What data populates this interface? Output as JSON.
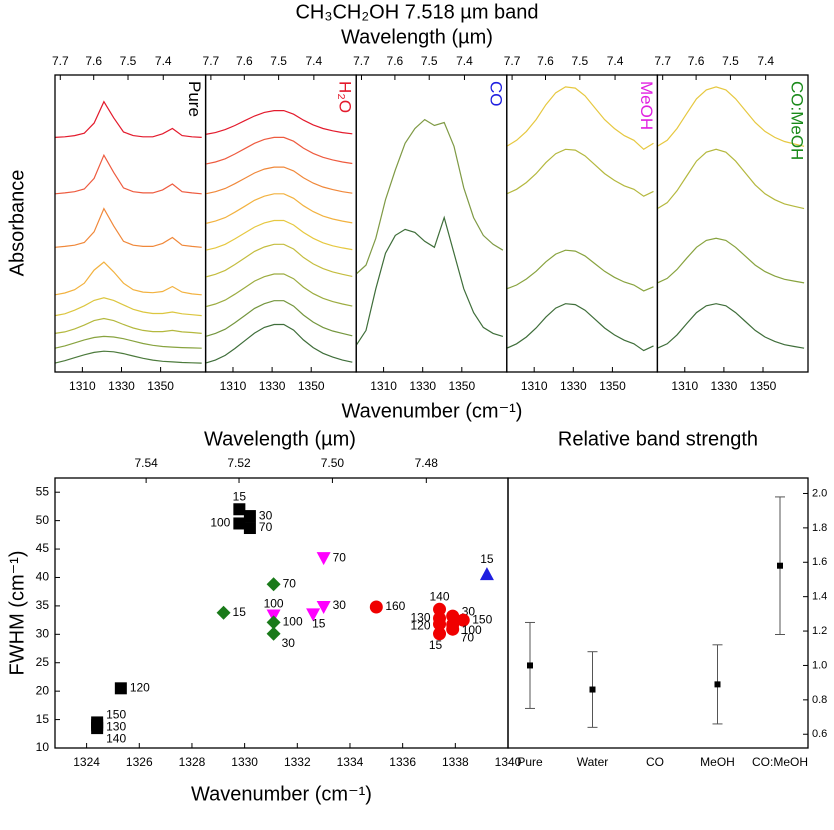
{
  "title": "CH₃CH₂OH  7.518 µm band",
  "spectra": {
    "x2label": "Wavelength (µm)",
    "xlabel": "Wavenumber (cm⁻¹)",
    "ylabel": "Absorbance"
  },
  "chart_data": [
    {
      "type": "line",
      "label": "Pure",
      "label_color": "#000000",
      "x": [
        1296,
        1301,
        1306,
        1311,
        1316,
        1321,
        1326,
        1331,
        1336,
        1341,
        1346,
        1351,
        1356,
        1361,
        1366,
        1371
      ],
      "xlim": [
        1296,
        1373
      ],
      "xticks": [
        1310,
        1330,
        1350
      ],
      "x2ticks": [
        7.7,
        7.6,
        7.5,
        7.4
      ],
      "ylim": [
        0,
        100
      ],
      "series": [
        {
          "color": "#e31a2c",
          "values": [
            79,
            79.2,
            79.6,
            80.4,
            83.8,
            91,
            85.6,
            80.8,
            79.6,
            79.2,
            79.2,
            80.2,
            82,
            79.6,
            79.2,
            79
          ]
        },
        {
          "color": "#ee5b3f",
          "values": [
            60,
            60.3,
            60.7,
            61.6,
            65.2,
            73,
            67.2,
            62,
            60.7,
            60.3,
            60.3,
            61.3,
            63.3,
            60.7,
            60.3,
            60
          ]
        },
        {
          "color": "#f0883a",
          "values": [
            42,
            42.3,
            42.7,
            43.6,
            47.2,
            55,
            49.2,
            44,
            42.7,
            42.3,
            42.3,
            43.3,
            45.3,
            42.7,
            42.3,
            42
          ]
        },
        {
          "color": "#f2b240",
          "values": [
            26,
            26.6,
            27.7,
            29.9,
            34.3,
            37,
            33.7,
            29.9,
            27.7,
            26.9,
            26.7,
            27.1,
            28.8,
            26.9,
            26.3,
            26
          ]
        },
        {
          "color": "#dcc63f",
          "values": [
            19,
            19.6,
            20.8,
            22.3,
            24.1,
            25,
            24.1,
            22.6,
            21.1,
            20.2,
            19.7,
            19.7,
            20.2,
            19.6,
            19.3,
            19
          ]
        },
        {
          "color": "#b4b83e",
          "values": [
            13,
            13.5,
            14.5,
            15.8,
            17.3,
            18,
            17.3,
            16,
            14.8,
            14,
            13.6,
            13.6,
            14,
            13.5,
            13.3,
            13
          ]
        },
        {
          "color": "#88a33f",
          "values": [
            8,
            8.8,
            9.8,
            10.8,
            11.6,
            12,
            11.8,
            11.2,
            10.4,
            9.6,
            9,
            8.6,
            8.4,
            8.2,
            8.1,
            8
          ]
        },
        {
          "color": "#4c7a3c",
          "values": [
            3,
            3.8,
            4.8,
            5.8,
            6.6,
            7,
            6.8,
            6.2,
            5.4,
            4.6,
            4,
            3.6,
            3.4,
            3.2,
            3.1,
            3
          ]
        }
      ]
    },
    {
      "type": "line",
      "label": "H₂O",
      "label_color": "#e31a2c",
      "x": [
        1296,
        1301,
        1306,
        1311,
        1316,
        1321,
        1326,
        1331,
        1336,
        1341,
        1346,
        1351,
        1356,
        1361,
        1366,
        1371
      ],
      "xlim": [
        1296,
        1373
      ],
      "xticks": [
        1310,
        1330,
        1350
      ],
      "x2ticks": [
        7.7,
        7.6,
        7.5,
        7.4
      ],
      "ylim": [
        0,
        100
      ],
      "series": [
        {
          "color": "#e31a2c",
          "values": [
            80,
            80.6,
            81.6,
            83,
            84.6,
            86.2,
            87.4,
            88,
            88,
            86.8,
            84.8,
            83.2,
            82,
            81.2,
            80.6,
            80.2
          ]
        },
        {
          "color": "#ee5b3f",
          "values": [
            70,
            70.7,
            71.8,
            73.4,
            75.2,
            77,
            78.3,
            79,
            79,
            77.7,
            75.4,
            73.6,
            72.3,
            71.4,
            70.7,
            70.2
          ]
        },
        {
          "color": "#f0883a",
          "values": [
            60,
            60.7,
            61.8,
            63.4,
            65.2,
            67,
            68.3,
            69,
            69,
            67.7,
            65.4,
            63.6,
            62.3,
            61.4,
            60.7,
            60.2
          ]
        },
        {
          "color": "#f2b240",
          "values": [
            50,
            50.8,
            52,
            53.8,
            55.8,
            57.8,
            59.2,
            60,
            60,
            58.5,
            56,
            54,
            52.5,
            51.5,
            50.8,
            50.2
          ]
        },
        {
          "color": "#e6c840",
          "values": [
            41,
            41.8,
            43,
            44.8,
            46.8,
            48.8,
            50.2,
            51,
            51,
            49.5,
            47,
            45,
            43.5,
            42.5,
            41.8,
            41.2
          ]
        },
        {
          "color": "#c4bd3f",
          "values": [
            32,
            32.9,
            34.2,
            36.2,
            38.4,
            40.6,
            42.1,
            43,
            43,
            41.4,
            38.6,
            36.4,
            34.8,
            33.7,
            32.9,
            32.2
          ]
        },
        {
          "color": "#9cac40",
          "values": [
            22,
            22.9,
            24.2,
            26.2,
            28.4,
            30.6,
            32.1,
            33,
            33,
            31.4,
            28.6,
            26.4,
            24.8,
            23.7,
            22.9,
            22.2
          ]
        },
        {
          "color": "#74963e",
          "values": [
            12,
            13,
            14.4,
            16.6,
            19,
            21.4,
            23,
            24,
            24,
            22.2,
            19.2,
            16.8,
            15,
            13.8,
            13,
            12.2
          ]
        },
        {
          "color": "#3f6e3a",
          "values": [
            3,
            4,
            5.6,
            7.9,
            10.5,
            13.1,
            15,
            16,
            16,
            14.1,
            10.8,
            8.2,
            6.3,
            5,
            4,
            3.3
          ]
        }
      ]
    },
    {
      "type": "line",
      "label": "CO",
      "label_color": "#1f1fe0",
      "x": [
        1296,
        1301,
        1306,
        1311,
        1316,
        1321,
        1326,
        1331,
        1336,
        1341,
        1346,
        1351,
        1356,
        1361,
        1366,
        1371
      ],
      "xlim": [
        1296,
        1373
      ],
      "xticks": [
        1310,
        1330,
        1350
      ],
      "x2ticks": [
        7.7,
        7.6,
        7.5,
        7.4
      ],
      "ylim": [
        0,
        100
      ],
      "series": [
        {
          "color": "#7f9a45",
          "values": [
            33,
            36,
            45,
            58,
            68,
            77,
            82,
            85,
            83,
            84,
            76,
            62,
            52,
            46,
            43,
            41
          ]
        },
        {
          "color": "#3f6e3a",
          "values": [
            9,
            14,
            28,
            40,
            46,
            48,
            47,
            44,
            42,
            52,
            40,
            28,
            20,
            15,
            13,
            12
          ]
        }
      ]
    },
    {
      "type": "line",
      "label": "MeOH",
      "label_color": "#e020e0",
      "x": [
        1296,
        1301,
        1306,
        1311,
        1316,
        1321,
        1326,
        1331,
        1336,
        1341,
        1346,
        1351,
        1356,
        1361,
        1366,
        1371
      ],
      "xlim": [
        1296,
        1373
      ],
      "xticks": [
        1310,
        1330,
        1350
      ],
      "x2ticks": [
        7.7,
        7.6,
        7.5,
        7.4
      ],
      "ylim": [
        0,
        100
      ],
      "series": [
        {
          "color": "#e6c840",
          "values": [
            76,
            78,
            81,
            85,
            90,
            94,
            96,
            95.6,
            93,
            89,
            85,
            82,
            79.6,
            78,
            75,
            77
          ]
        },
        {
          "color": "#b4b83e",
          "values": [
            60,
            61.5,
            63.8,
            66.8,
            70.5,
            73.5,
            75,
            74.7,
            72.8,
            69.8,
            66.8,
            64.5,
            62.7,
            61.5,
            59.2,
            60.8
          ]
        },
        {
          "color": "#88a33f",
          "values": [
            28,
            29.3,
            31.3,
            33.9,
            37.1,
            39.7,
            41,
            40.7,
            39.1,
            36.5,
            33.9,
            31.9,
            30.3,
            29.3,
            27.3,
            28.7
          ]
        },
        {
          "color": "#3f6e3a",
          "values": [
            8,
            9.5,
            11.8,
            14.8,
            18.5,
            21.5,
            23,
            22.7,
            20.8,
            17.8,
            14.8,
            12.5,
            10.7,
            9.5,
            7.2,
            8.8
          ]
        }
      ]
    },
    {
      "type": "line",
      "label": "CO:MeOH",
      "label_color": "#1a8a1a",
      "x": [
        1296,
        1301,
        1306,
        1311,
        1316,
        1321,
        1326,
        1331,
        1336,
        1341,
        1346,
        1351,
        1356,
        1361,
        1366,
        1371
      ],
      "xlim": [
        1296,
        1373
      ],
      "xticks": [
        1310,
        1330,
        1350
      ],
      "x2ticks": [
        7.7,
        7.6,
        7.5,
        7.4
      ],
      "ylim": [
        0,
        100
      ],
      "series": [
        {
          "color": "#e6c840",
          "values": [
            76,
            78,
            82,
            87,
            92,
            95,
            96,
            95,
            92,
            88,
            84,
            81,
            79,
            77.6,
            76.8,
            76
          ]
        },
        {
          "color": "#b4b83e",
          "values": [
            55,
            57,
            61,
            66,
            71,
            74,
            75,
            74,
            71,
            67,
            63,
            60,
            58,
            56.6,
            55.8,
            55
          ]
        },
        {
          "color": "#88a33f",
          "values": [
            30,
            31.5,
            34.5,
            38.3,
            42,
            44.3,
            45,
            44.3,
            42,
            39,
            36,
            33.8,
            32.3,
            31.2,
            30.6,
            30
          ]
        },
        {
          "color": "#3f6e3a",
          "values": [
            8,
            9.5,
            12.5,
            16.3,
            20,
            22.3,
            23,
            22.3,
            20,
            17,
            14,
            11.8,
            10.3,
            9.2,
            8.6,
            8
          ]
        }
      ]
    },
    {
      "type": "scatter",
      "x2label": "Wavelength (µm)",
      "xlabel": "Wavenumber (cm⁻¹)",
      "ylabel": "FWHM (cm⁻¹)",
      "xlim": [
        1322.8,
        1340
      ],
      "xticks": [
        1324,
        1326,
        1328,
        1330,
        1332,
        1334,
        1336,
        1338,
        1340
      ],
      "x2ticks": [
        7.54,
        7.52,
        {
          "value": 7.5,
          "label": "7.50"
        },
        7.48
      ],
      "ylim": [
        10,
        57.5
      ],
      "yticks": [
        10,
        15,
        20,
        25,
        30,
        35,
        40,
        45,
        50,
        55
      ],
      "series": [
        {
          "color": "#000000",
          "marker": "square",
          "x": [
            1329.8,
            1330.2,
            1329.8,
            1330.2,
            1325.3,
            1324.4,
            1324.4,
            1324.4
          ],
          "values": [
            52,
            50.8,
            49.5,
            48.7,
            20.5,
            14.5,
            14,
            13.5
          ],
          "labels": [
            "15",
            "30",
            "100",
            "70",
            "120",
            "150",
            "130",
            "140"
          ]
        },
        {
          "color": "#f00000",
          "marker": "circle",
          "x": [
            1335,
            1337.4,
            1337.9,
            1337.4,
            1337.4,
            1338.3,
            1337.4,
            1337.9,
            1337.9
          ],
          "values": [
            34.8,
            34.4,
            33.2,
            32.8,
            31.8,
            32.5,
            30.1,
            30.9,
            31.7
          ],
          "labels": [
            "160",
            "140",
            "30",
            "130",
            "120",
            "150",
            "15",
            "70",
            "100"
          ]
        },
        {
          "color": "#1f1fe0",
          "marker": "triangle-up",
          "x": [
            1339.2
          ],
          "values": [
            40.6
          ],
          "labels": [
            "15"
          ]
        },
        {
          "color": "#ff00ff",
          "marker": "triangle-down",
          "x": [
            1333,
            1331.1,
            1333,
            1332.6
          ],
          "values": [
            43.4,
            33.3,
            34.8,
            33.5
          ],
          "labels": [
            "70",
            "100",
            "30",
            "15"
          ]
        },
        {
          "color": "#1a7a1a",
          "marker": "diamond",
          "x": [
            1331.1,
            1329.2,
            1331.1,
            1331.1
          ],
          "values": [
            38.8,
            33.8,
            32.1,
            30.1
          ],
          "labels": [
            "70",
            "15",
            "100",
            "30"
          ]
        }
      ]
    },
    {
      "type": "errorbar",
      "title": "Relative band strength",
      "color": "#000000",
      "categories": [
        "Pure",
        "Water",
        "CO",
        "MeOH",
        "CO:MeOH"
      ],
      "values": [
        1.0,
        0.86,
        null,
        0.89,
        1.58
      ],
      "errors": [
        0.25,
        0.22,
        null,
        0.23,
        0.4
      ],
      "ylim": [
        0.52,
        2.09
      ],
      "yticks": [
        0.6,
        0.8,
        {
          "value": 1.0,
          "label": "1.0"
        },
        1.2,
        1.4,
        1.6,
        1.8,
        {
          "value": 2.0,
          "label": "2.0"
        }
      ]
    }
  ]
}
